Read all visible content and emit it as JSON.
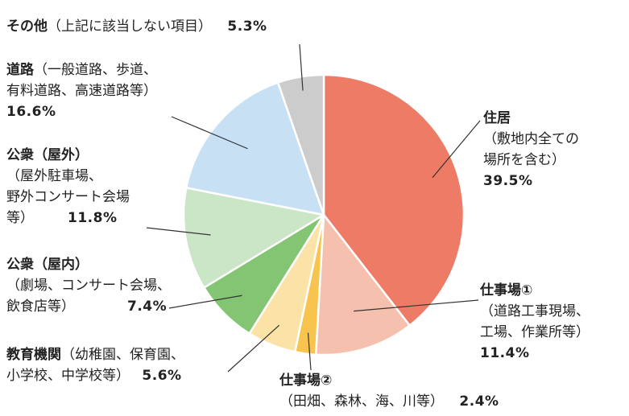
{
  "chart_data": {
    "type": "pie",
    "start_angle_deg": 0,
    "direction": "clockwise",
    "slices": [
      {
        "name": "住居",
        "detail": "（敷地内全ての\n場所を含む）",
        "value": 39.5,
        "value_label": "39.5%",
        "color": "#EE7B66"
      },
      {
        "name": "仕事場①",
        "detail": "（道路工事現場、\n工場、作業所等）",
        "value": 11.4,
        "value_label": "11.4%",
        "color": "#F5C0AE"
      },
      {
        "name": "仕事場②",
        "detail": "（田畑、森林、海、川等）",
        "value": 2.4,
        "value_label": "2.4%",
        "color": "#F8C44E"
      },
      {
        "name": "教育機関",
        "detail": "（幼稚園、保育園、\n小学校、中学校等）",
        "value": 5.6,
        "value_label": "5.6%",
        "color": "#FBE2A6"
      },
      {
        "name": "公衆（屋内）",
        "detail": "（劇場、コンサート会場、\n飲食店等）",
        "value": 7.4,
        "value_label": "7.4%",
        "color": "#84C574"
      },
      {
        "name": "公衆（屋外）",
        "detail": "（屋外駐車場、\n野外コンサート会場\n等）",
        "value": 11.8,
        "value_label": "11.8%",
        "color": "#CBE6C6"
      },
      {
        "name": "道路",
        "detail": "（一般道路、歩道、\n有料道路、高速道路等）",
        "value": 16.6,
        "value_label": "16.6%",
        "color": "#C7E0F4"
      },
      {
        "name": "その他",
        "detail": "（上記に該当しない項目）",
        "value": 5.3,
        "value_label": "5.3%",
        "color": "#CCCCCC"
      }
    ]
  }
}
